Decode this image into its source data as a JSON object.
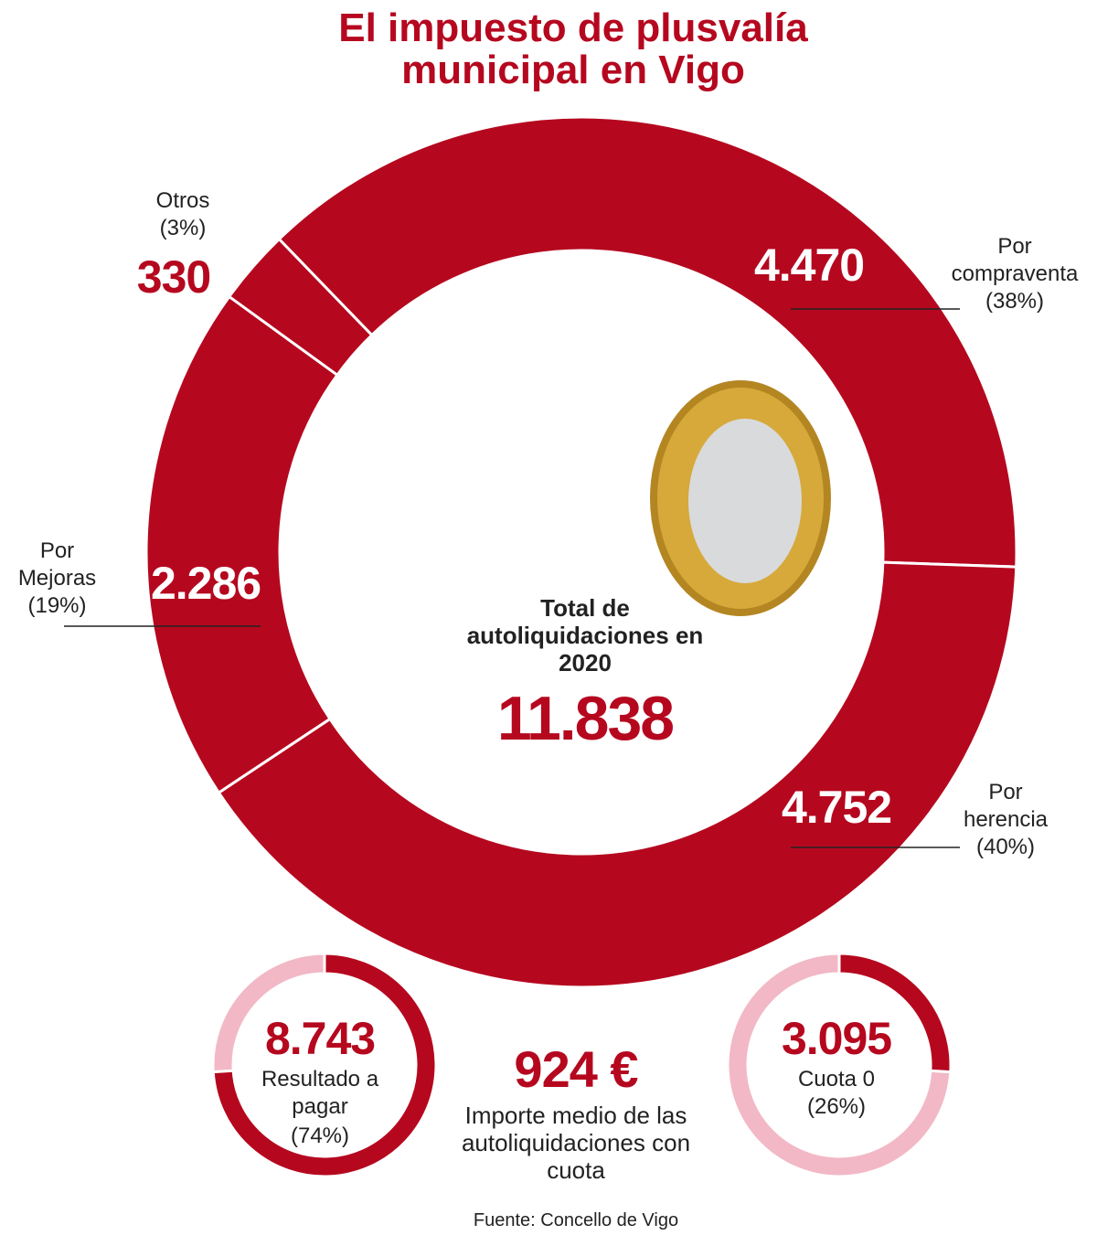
{
  "title": "El impuesto de plusvalía municipal en Vigo",
  "chart_data": [
    {
      "type": "donut",
      "categories": [
        "Por compraventa",
        "Por herencia",
        "Por Mejoras",
        "Otros"
      ],
      "values": [
        4470,
        4752,
        2286,
        330
      ],
      "value_labels": [
        "4.470",
        "4.752",
        "2.286",
        "330"
      ],
      "percent_labels": [
        "(38%)",
        "(40%)",
        "(19%)",
        "(3%)"
      ],
      "color": "#b5081f",
      "center_label": "Total de autoliquidaciones en 2020",
      "total_label": "11.838"
    },
    {
      "type": "gauge",
      "value_label": "8.743",
      "label": "Resultado a pagar",
      "percent": 74,
      "percent_label": "(74%)",
      "color": "#b5081f",
      "track_color": "#f2b8c6"
    },
    {
      "type": "gauge",
      "value_label": "3.095",
      "label": "Cuota 0",
      "percent": 26,
      "percent_label": "(26%)",
      "color": "#b5081f",
      "track_color": "#f2b8c6"
    }
  ],
  "average_label": "924 €",
  "average_text": "Importe medio de las autoliquidaciones con cuota",
  "source": "Fuente: Concello de Vigo"
}
